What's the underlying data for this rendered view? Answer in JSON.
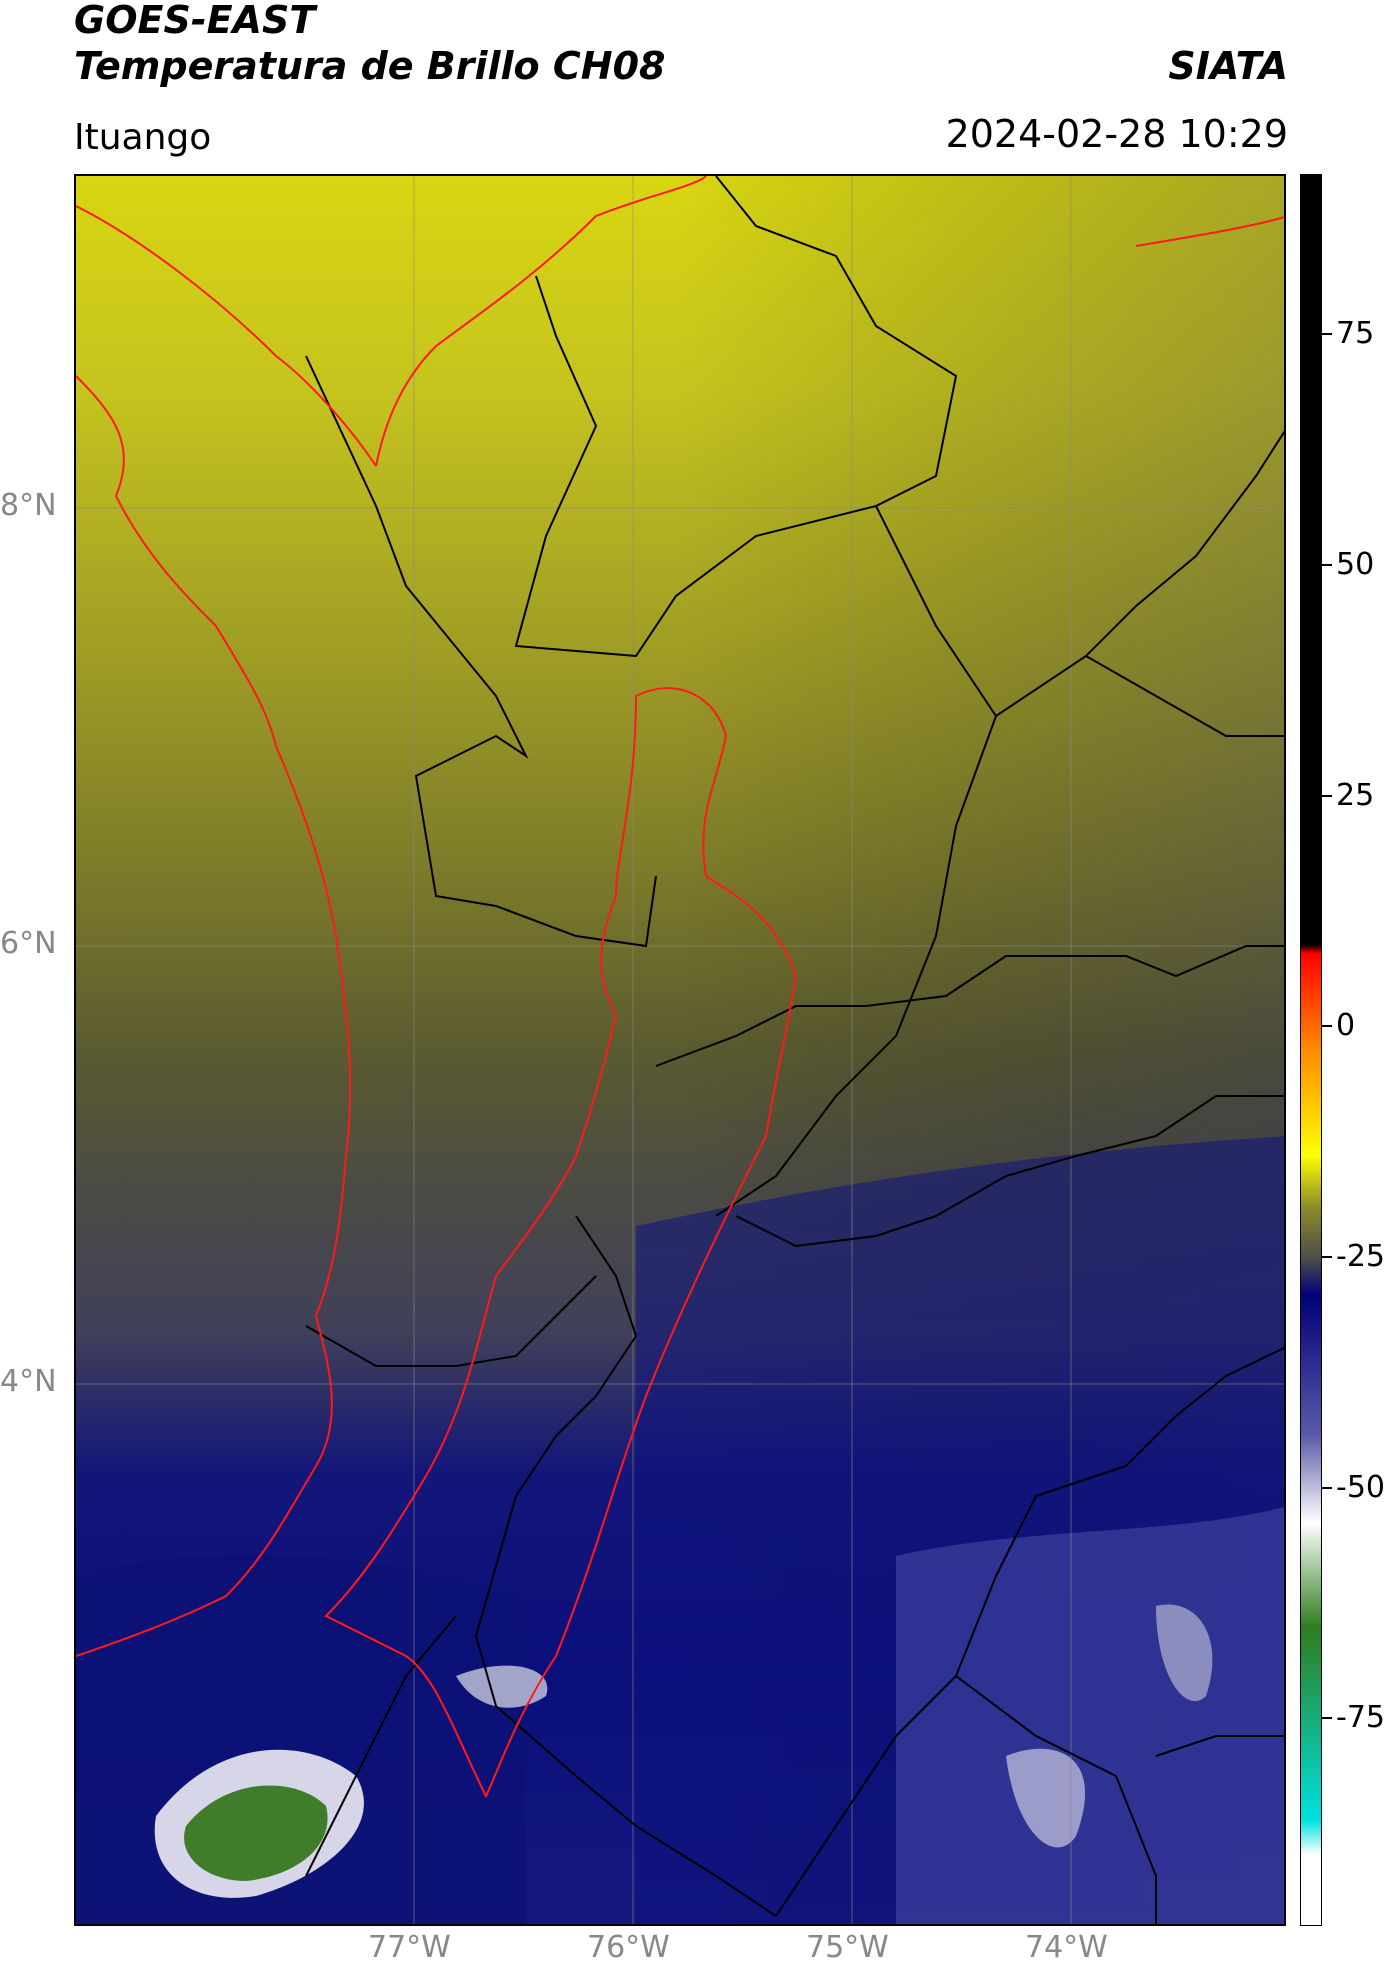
{
  "header": {
    "title_line1": "GOES-EAST",
    "title_line2": "Temperatura de Brillo CH08",
    "brand": "SIATA",
    "location": "Ituango",
    "datetime": "2024-02-28 10:29"
  },
  "map": {
    "lat_labels": [
      "8°N",
      "6°N",
      "4°N"
    ],
    "lon_labels": [
      "77°W",
      "76°W",
      "75°W",
      "74°W"
    ],
    "colors": {
      "warm_top": "#d2d21a",
      "mid": "#9a9a22",
      "gray": "#4a4a4a",
      "deep_blue": "#0b1382",
      "blue": "#3a3f9e",
      "light": "#d8d8ea",
      "green": "#3e7d2a",
      "border_black": "#000000",
      "border_red": "#ff0000"
    }
  },
  "colorbar": {
    "tick_labels": [
      "75",
      "50",
      "25",
      "0",
      "-25",
      "-50",
      "-75"
    ],
    "stops": [
      {
        "color": "#000000"
      },
      {
        "color": "#000000"
      },
      {
        "color": "#ff0000"
      },
      {
        "color": "#ff8a00"
      },
      {
        "color": "#ffff00"
      },
      {
        "color": "#8c8c2a"
      },
      {
        "color": "#4a4a4a"
      },
      {
        "color": "#00007a"
      },
      {
        "color": "#5a5aa8"
      },
      {
        "color": "#ffffff"
      },
      {
        "color": "#2e7d1e"
      },
      {
        "color": "#00e0e0"
      },
      {
        "color": "#ffffff"
      }
    ]
  }
}
